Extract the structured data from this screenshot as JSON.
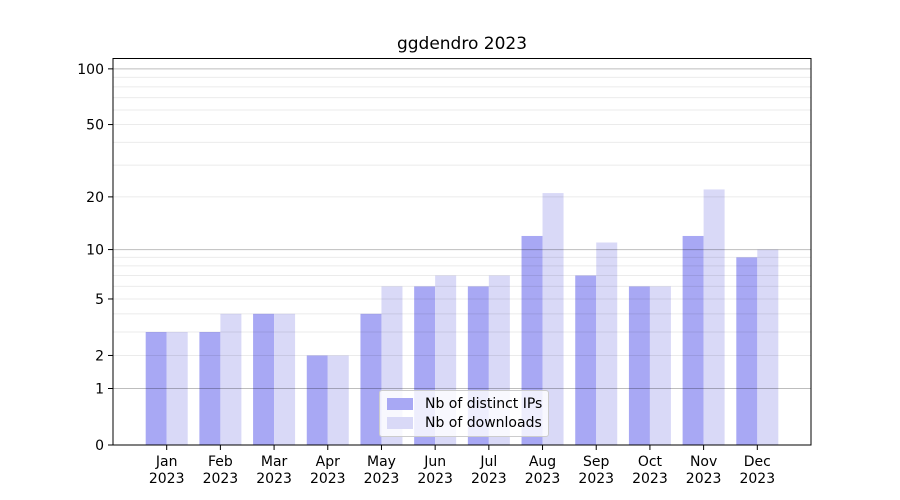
{
  "chart_data": {
    "type": "bar",
    "title": "ggdendro 2023",
    "categories": [
      "Jan",
      "Feb",
      "Mar",
      "Apr",
      "May",
      "Jun",
      "Jul",
      "Aug",
      "Sep",
      "Oct",
      "Nov",
      "Dec"
    ],
    "x_tick_second_line": "2023",
    "series": [
      {
        "name": "Nb of distinct IPs",
        "color": "#a8a8f4",
        "values": [
          3,
          3,
          4,
          2,
          4,
          6,
          6,
          12,
          7,
          6,
          12,
          9
        ]
      },
      {
        "name": "Nb of downloads",
        "color": "#d9d9f7",
        "values": [
          3,
          4,
          4,
          2,
          6,
          7,
          7,
          21,
          11,
          6,
          22,
          10
        ]
      }
    ],
    "y_scale": "log1p",
    "ylim": [
      0,
      114
    ],
    "y_axis_ticks": [
      0,
      1,
      2,
      5,
      10,
      20,
      50,
      100
    ],
    "y_major_gridlines": [
      1,
      10,
      100
    ],
    "y_minor_gridlines": [
      2,
      3,
      4,
      5,
      6,
      7,
      8,
      9,
      20,
      30,
      40,
      50,
      60,
      70,
      80,
      90
    ],
    "grid": true,
    "legend_position": "lower center",
    "colors": {
      "bar_distinct_ips": "#a8a8f4",
      "bar_downloads": "#d9d9f7",
      "major_grid": "rgba(0,0,0,0.26)",
      "minor_grid": "rgba(0,0,0,0.08)",
      "axis": "#000000",
      "text": "#000000",
      "legend_border": "#cccccc"
    }
  }
}
